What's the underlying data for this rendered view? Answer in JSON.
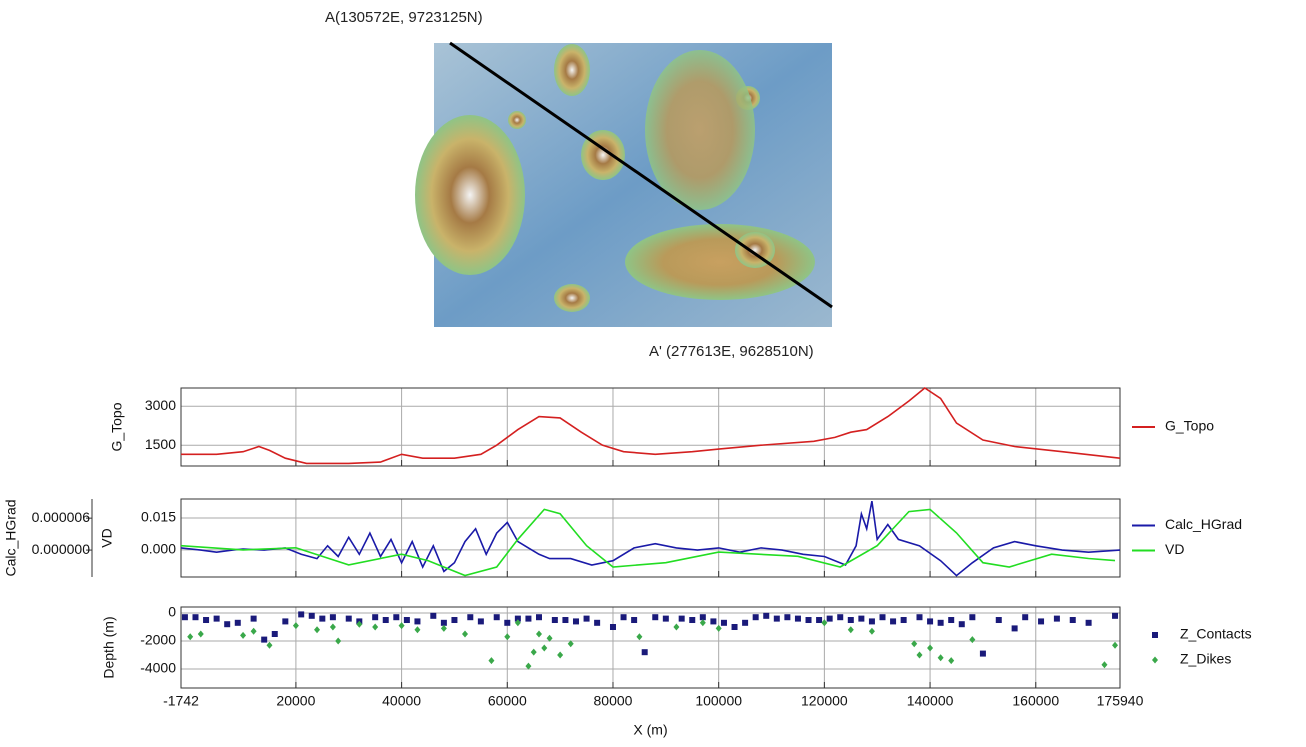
{
  "map_labels": {
    "start": "A(130572E, 9723125N)",
    "end": "A' (277613E, 9628510N)"
  },
  "chart_data": [
    {
      "type": "line",
      "ylabel": "G_Topo",
      "grid": true,
      "xlim": [
        -1742,
        175940
      ],
      "xticks": [
        -1742,
        20000,
        40000,
        60000,
        80000,
        100000,
        120000,
        140000,
        160000,
        175940
      ],
      "ylim": [
        700,
        3700
      ],
      "yticks": [
        1500,
        3000
      ],
      "series": [
        {
          "name": "G_Topo",
          "color": "#d42020",
          "x": [
            -1742,
            5000,
            10000,
            13000,
            15000,
            18000,
            22000,
            30000,
            36000,
            40000,
            44000,
            50000,
            55000,
            58000,
            62000,
            66000,
            70000,
            74000,
            78000,
            82000,
            88000,
            95000,
            100000,
            108000,
            118000,
            122000,
            125000,
            128000,
            132000,
            136000,
            139000,
            142000,
            145000,
            150000,
            156000,
            165000,
            175940
          ],
          "values": [
            1150,
            1150,
            1250,
            1450,
            1300,
            1000,
            800,
            800,
            850,
            1150,
            1000,
            1000,
            1150,
            1500,
            2100,
            2600,
            2550,
            2000,
            1500,
            1250,
            1150,
            1250,
            1350,
            1500,
            1650,
            1800,
            2000,
            2100,
            2600,
            3200,
            3700,
            3300,
            2350,
            1700,
            1450,
            1250,
            1000
          ]
        }
      ]
    },
    {
      "type": "line",
      "ylabel": "VD",
      "y2label": "Calc_HGrad",
      "grid": true,
      "xlim": [
        -1742,
        175940
      ],
      "xticks": [
        -1742,
        20000,
        40000,
        60000,
        80000,
        100000,
        120000,
        140000,
        160000,
        175940
      ],
      "ylim": [
        -0.0127,
        0.0239
      ],
      "yticks": [
        {
          "value": 0,
          "label": "0.000"
        },
        {
          "value": 0.015,
          "label": "0.015"
        }
      ],
      "y2lim": [
        -5.06e-06,
        9.6e-06
      ],
      "y2ticks": [
        {
          "value": 0,
          "label": "0.000000"
        },
        {
          "value": 6e-06,
          "label": "0.000006"
        }
      ],
      "series": [
        {
          "name": "Calc_HGrad",
          "color": "#1a1aa8",
          "axis": "y2",
          "x": [
            -1742,
            2000,
            5000,
            8000,
            10000,
            14000,
            18000,
            21000,
            24000,
            26000,
            28000,
            30000,
            32000,
            34000,
            36000,
            38000,
            40000,
            42000,
            44000,
            46000,
            48000,
            50000,
            52000,
            54000,
            56000,
            58000,
            60000,
            62000,
            64000,
            66000,
            68000,
            72000,
            76000,
            80000,
            84000,
            88000,
            92000,
            96000,
            100000,
            104000,
            108000,
            112000,
            116000,
            120000,
            124000,
            126000,
            127000,
            128000,
            129000,
            130000,
            132000,
            134000,
            138000,
            142000,
            145000,
            148000,
            152000,
            156000,
            160000,
            165000,
            170000,
            175940
          ],
          "values": [
            4e-07,
            0,
            -4e-07,
            0,
            2e-07,
            0,
            4e-07,
            -8e-07,
            -1.6e-06,
            8e-07,
            -1.2e-06,
            2.4e-06,
            -8e-07,
            3.2e-06,
            -1.2e-06,
            2e-06,
            -2.4e-06,
            1.6e-06,
            -3.2e-06,
            8e-07,
            -4e-06,
            -2.4e-06,
            1.6e-06,
            4e-06,
            -8e-07,
            3.2e-06,
            5.2e-06,
            1.6e-06,
            4e-07,
            -8e-07,
            -1.6e-06,
            -1.6e-06,
            -2.8e-06,
            -2e-06,
            4e-07,
            1.2e-06,
            4e-07,
            0,
            4e-07,
            -4e-07,
            4e-07,
            0,
            -8e-07,
            -1.2e-06,
            -2.8e-06,
            8e-07,
            6.8e-06,
            4e-06,
            9.2e-06,
            2e-06,
            4.8e-06,
            2e-06,
            8e-07,
            -2e-06,
            -4.8e-06,
            -2.4e-06,
            4e-07,
            1.6e-06,
            8e-07,
            0,
            -4e-07,
            0
          ]
        },
        {
          "name": "VD",
          "color": "#22dd22",
          "x": [
            -1742,
            10000,
            20000,
            30000,
            40000,
            45000,
            52000,
            58000,
            62000,
            67000,
            70000,
            75000,
            80000,
            90000,
            100000,
            115000,
            123000,
            130000,
            136000,
            140000,
            145000,
            150000,
            155000,
            163000,
            170000,
            175000
          ],
          "values": [
            0.002,
            0,
            0.001,
            -0.007,
            -0.002,
            -0.005,
            -0.012,
            -0.008,
            0.005,
            0.019,
            0.017,
            0.002,
            -0.008,
            -0.006,
            -0.001,
            -0.003,
            -0.008,
            0.002,
            0.018,
            0.019,
            0.008,
            -0.006,
            -0.008,
            -0.002,
            -0.004,
            -0.005
          ]
        }
      ]
    },
    {
      "type": "scatter",
      "ylabel": "Depth (m)",
      "xlabel": "X (m)",
      "grid": true,
      "xlim": [
        -1742,
        175940
      ],
      "xticks": [
        -1742,
        20000,
        40000,
        60000,
        80000,
        100000,
        120000,
        140000,
        160000,
        175940
      ],
      "ylim": [
        -5360,
        430
      ],
      "yticks": [
        -4000,
        -2000,
        0
      ],
      "series": [
        {
          "name": "Z_Contacts",
          "color": "#1a1a7a",
          "marker": "square",
          "x": [
            -1000,
            1000,
            3000,
            5000,
            7000,
            9000,
            12000,
            14000,
            16000,
            18000,
            21000,
            23000,
            25000,
            27000,
            30000,
            32000,
            35000,
            37000,
            39000,
            41000,
            43000,
            46000,
            48000,
            50000,
            53000,
            55000,
            58000,
            60000,
            62000,
            64000,
            66000,
            69000,
            71000,
            73000,
            75000,
            77000,
            80000,
            82000,
            84000,
            86000,
            88000,
            90000,
            93000,
            95000,
            97000,
            99000,
            101000,
            103000,
            105000,
            107000,
            109000,
            111000,
            113000,
            115000,
            117000,
            119000,
            121000,
            123000,
            125000,
            127000,
            129000,
            131000,
            133000,
            135000,
            138000,
            140000,
            142000,
            144000,
            146000,
            148000,
            150000,
            153000,
            156000,
            158000,
            161000,
            164000,
            167000,
            170000,
            175000
          ],
          "values": [
            -300,
            -300,
            -500,
            -400,
            -800,
            -700,
            -400,
            -1900,
            -1500,
            -600,
            -100,
            -200,
            -400,
            -300,
            -400,
            -600,
            -300,
            -500,
            -300,
            -500,
            -600,
            -200,
            -700,
            -500,
            -300,
            -600,
            -300,
            -700,
            -400,
            -400,
            -300,
            -500,
            -500,
            -600,
            -400,
            -700,
            -1000,
            -300,
            -500,
            -2800,
            -300,
            -400,
            -400,
            -500,
            -300,
            -600,
            -700,
            -1000,
            -700,
            -300,
            -200,
            -400,
            -300,
            -400,
            -500,
            -500,
            -400,
            -300,
            -500,
            -400,
            -600,
            -300,
            -600,
            -500,
            -300,
            -600,
            -700,
            -500,
            -800,
            -300,
            -2900,
            -500,
            -1100,
            -300,
            -600,
            -400,
            -500,
            -700,
            -200
          ]
        },
        {
          "name": "Z_Dikes",
          "color": "#3aa84a",
          "marker": "diamond",
          "x": [
            0,
            2000,
            10000,
            12000,
            15000,
            20000,
            24000,
            27000,
            28000,
            32000,
            35000,
            40000,
            43000,
            48000,
            52000,
            57000,
            60000,
            62000,
            64000,
            65000,
            66000,
            67000,
            68000,
            70000,
            72000,
            85000,
            92000,
            97000,
            100000,
            120000,
            125000,
            129000,
            137000,
            138000,
            140000,
            142000,
            144000,
            148000,
            173000,
            175000
          ],
          "values": [
            -1700,
            -1500,
            -1600,
            -1300,
            -2300,
            -900,
            -1200,
            -1000,
            -2000,
            -800,
            -1000,
            -900,
            -1200,
            -1100,
            -1500,
            -3400,
            -1700,
            -700,
            -3800,
            -2800,
            -1500,
            -2500,
            -1800,
            -3000,
            -2200,
            -1700,
            -1000,
            -700,
            -1100,
            -700,
            -1200,
            -1300,
            -2200,
            -3000,
            -2500,
            -3200,
            -3400,
            -1900,
            -3700,
            -2300
          ]
        }
      ]
    }
  ]
}
